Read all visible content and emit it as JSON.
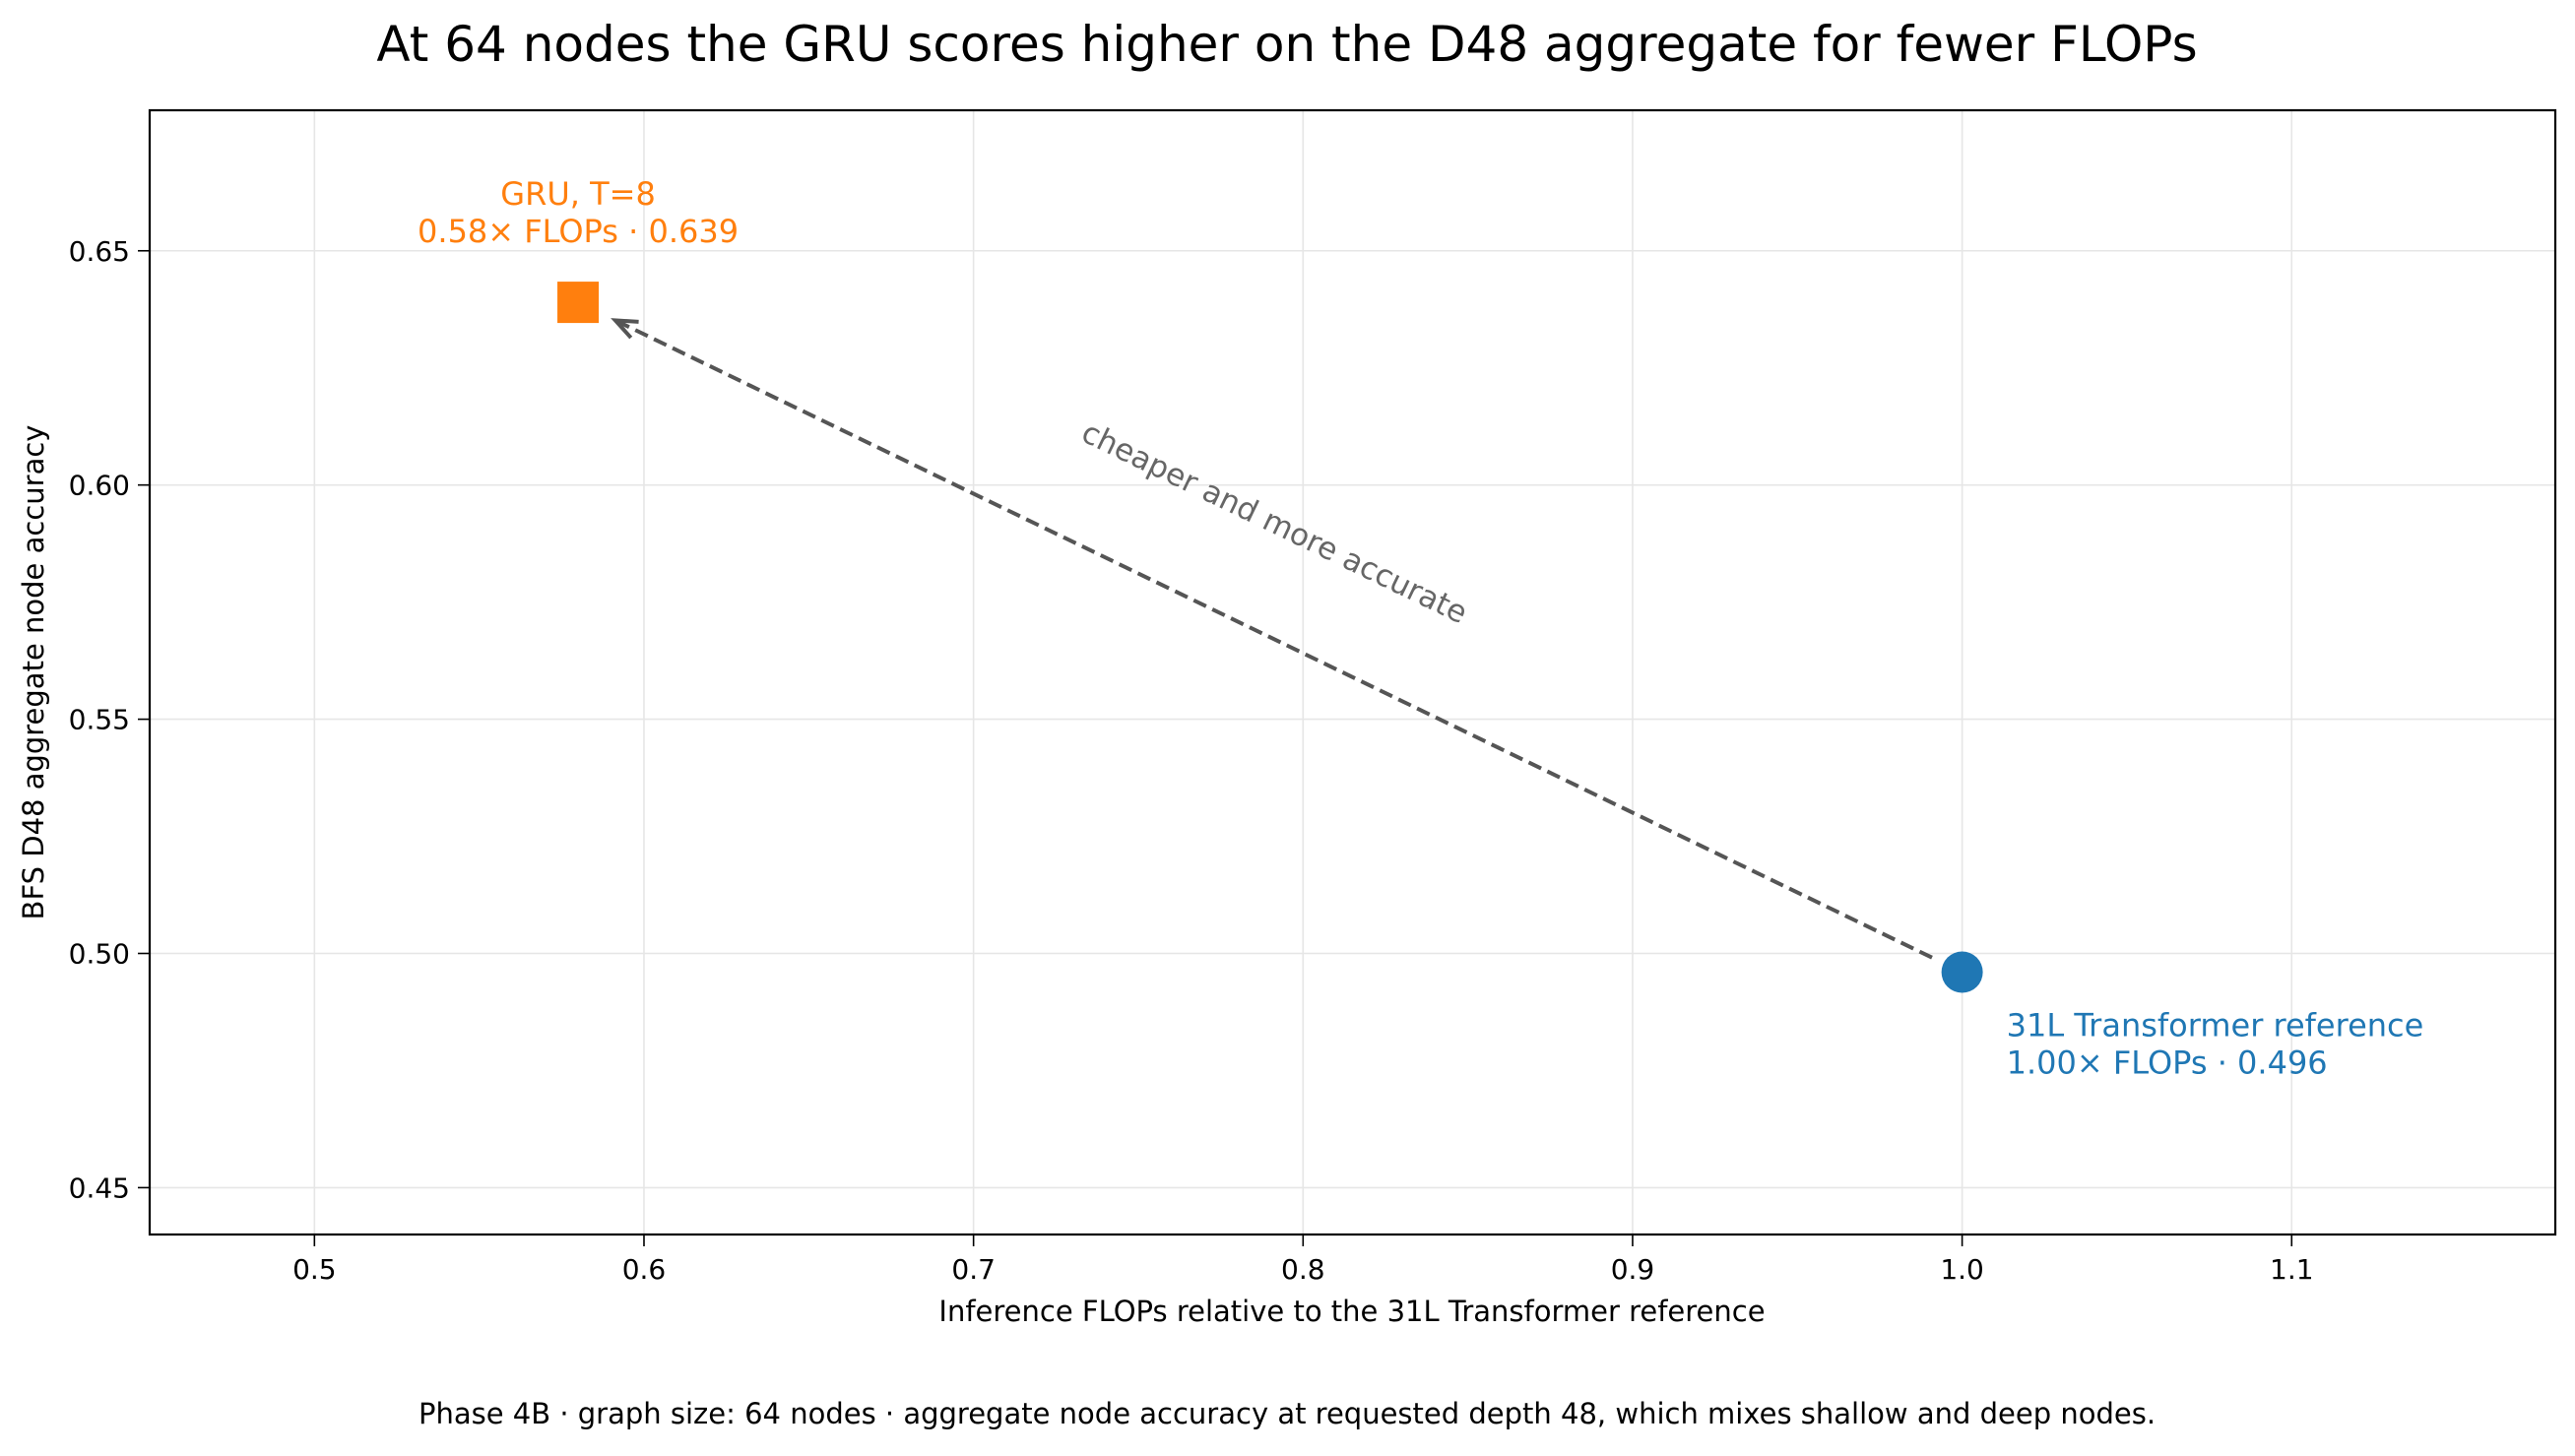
{
  "chart_data": {
    "type": "scatter",
    "title": "At 64 nodes the GRU scores higher on the D48 aggregate for fewer FLOPs",
    "xlabel": "Inference FLOPs relative to the 31L Transformer reference",
    "ylabel": "BFS D48 aggregate node accuracy",
    "footnote": "Phase 4B · graph size: 64 nodes · aggregate node accuracy at requested depth 48, which mixes shallow and deep nodes.",
    "xlim": [
      0.45,
      1.18
    ],
    "ylim": [
      0.44,
      0.68
    ],
    "xticks": [
      0.5,
      0.6,
      0.7,
      0.8,
      0.9,
      1.0,
      1.1
    ],
    "xtick_labels": [
      "0.5",
      "0.6",
      "0.7",
      "0.8",
      "0.9",
      "1.0",
      "1.1"
    ],
    "yticks": [
      0.45,
      0.5,
      0.55,
      0.6,
      0.65
    ],
    "ytick_labels": [
      "0.45",
      "0.50",
      "0.55",
      "0.60",
      "0.65"
    ],
    "grid": true,
    "points": [
      {
        "x": 1.0,
        "y": 0.496,
        "marker": "circle",
        "color": "#1f77b4",
        "label_line1": "31L Transformer reference",
        "label_line2": "1.00× FLOPs · 0.496"
      },
      {
        "x": 0.58,
        "y": 0.639,
        "marker": "square",
        "color": "#ff7f0e",
        "label_line1": "GRU, T=8",
        "label_line2": "0.58× FLOPs · 0.639"
      }
    ],
    "arrow": {
      "from": [
        1.0,
        0.496
      ],
      "to": [
        0.58,
        0.639
      ],
      "style": "dashed",
      "color": "#555555"
    },
    "annotation": {
      "text": "cheaper and more accurate",
      "x": 0.79,
      "y": 0.59,
      "color": "#666666"
    }
  }
}
